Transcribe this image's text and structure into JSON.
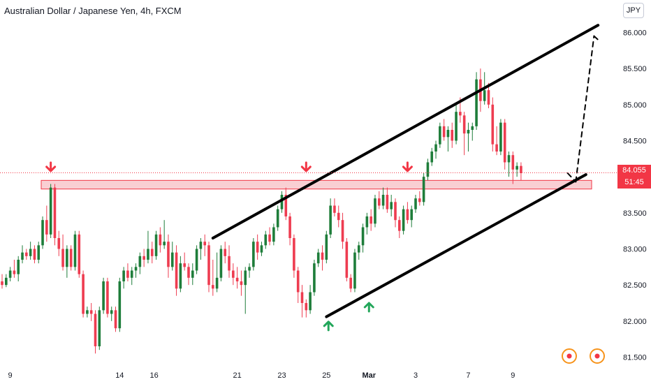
{
  "header": {
    "title": "Australian Dollar / Japanese Yen, 4h, FXCM",
    "currency_button": "JPY"
  },
  "price_badge": {
    "price": "84.055",
    "countdown": "51:45",
    "color": "#f23645"
  },
  "colors": {
    "up": "#1e7d3a",
    "down": "#ee3c50",
    "line": "#000000",
    "zone_fill": "#f9cfd3",
    "zone_stroke": "#f23645",
    "arrow_down": "#f23645",
    "arrow_up": "#22a65a"
  },
  "chart_data": {
    "type": "candlestick",
    "title": "Australian Dollar / Japanese Yen, 4h, FXCM",
    "x_tick_labels": [
      "9",
      "14",
      "16",
      "21",
      "23",
      "25",
      "Mar",
      "3",
      "7",
      "9"
    ],
    "y_tick_labels": [
      "86.000",
      "85.500",
      "85.000",
      "84.500",
      "84.000",
      "83.500",
      "83.000",
      "82.500",
      "82.000",
      "81.500"
    ],
    "ylim": [
      81.35,
      86.45
    ],
    "xlim": [
      0,
      148
    ],
    "last_price": 84.055,
    "candles": [
      {
        "x": 0,
        "o": 82.55,
        "h": 82.65,
        "l": 82.45,
        "c": 82.5
      },
      {
        "x": 1,
        "o": 82.5,
        "h": 82.65,
        "l": 82.47,
        "c": 82.6
      },
      {
        "x": 2,
        "o": 82.6,
        "h": 82.75,
        "l": 82.55,
        "c": 82.7
      },
      {
        "x": 3,
        "o": 82.7,
        "h": 82.85,
        "l": 82.6,
        "c": 82.65
      },
      {
        "x": 4,
        "o": 82.65,
        "h": 82.9,
        "l": 82.55,
        "c": 82.85
      },
      {
        "x": 5,
        "o": 82.85,
        "h": 83.05,
        "l": 82.8,
        "c": 82.95
      },
      {
        "x": 6,
        "o": 82.95,
        "h": 83.0,
        "l": 82.85,
        "c": 82.9
      },
      {
        "x": 7,
        "o": 82.9,
        "h": 83.1,
        "l": 82.85,
        "c": 83.0
      },
      {
        "x": 8,
        "o": 83.0,
        "h": 83.05,
        "l": 82.8,
        "c": 82.85
      },
      {
        "x": 9,
        "o": 82.85,
        "h": 83.1,
        "l": 82.8,
        "c": 83.05
      },
      {
        "x": 10,
        "o": 83.05,
        "h": 83.45,
        "l": 83.0,
        "c": 83.4
      },
      {
        "x": 11,
        "o": 83.4,
        "h": 83.6,
        "l": 83.1,
        "c": 83.2
      },
      {
        "x": 12,
        "o": 83.2,
        "h": 83.9,
        "l": 83.15,
        "c": 83.85
      },
      {
        "x": 13,
        "o": 83.85,
        "h": 83.9,
        "l": 83.05,
        "c": 83.15
      },
      {
        "x": 14,
        "o": 83.15,
        "h": 83.25,
        "l": 82.9,
        "c": 83.0
      },
      {
        "x": 15,
        "o": 83.0,
        "h": 83.2,
        "l": 82.7,
        "c": 82.75
      },
      {
        "x": 16,
        "o": 82.75,
        "h": 83.05,
        "l": 82.6,
        "c": 83.0
      },
      {
        "x": 17,
        "o": 83.0,
        "h": 83.05,
        "l": 82.7,
        "c": 82.75
      },
      {
        "x": 18,
        "o": 82.75,
        "h": 83.25,
        "l": 82.7,
        "c": 83.2
      },
      {
        "x": 19,
        "o": 83.2,
        "h": 83.25,
        "l": 82.6,
        "c": 82.65
      },
      {
        "x": 20,
        "o": 82.65,
        "h": 82.7,
        "l": 82.05,
        "c": 82.1
      },
      {
        "x": 21,
        "o": 82.1,
        "h": 82.2,
        "l": 82.05,
        "c": 82.15
      },
      {
        "x": 22,
        "o": 82.15,
        "h": 82.25,
        "l": 82.0,
        "c": 82.1
      },
      {
        "x": 23,
        "o": 82.1,
        "h": 82.15,
        "l": 81.55,
        "c": 81.65
      },
      {
        "x": 24,
        "o": 81.65,
        "h": 82.2,
        "l": 81.6,
        "c": 82.15
      },
      {
        "x": 25,
        "o": 82.15,
        "h": 82.6,
        "l": 82.1,
        "c": 82.55
      },
      {
        "x": 26,
        "o": 82.55,
        "h": 82.6,
        "l": 82.05,
        "c": 82.1
      },
      {
        "x": 27,
        "o": 82.1,
        "h": 82.2,
        "l": 82.0,
        "c": 82.15
      },
      {
        "x": 28,
        "o": 82.15,
        "h": 82.2,
        "l": 81.85,
        "c": 81.9
      },
      {
        "x": 29,
        "o": 81.9,
        "h": 82.6,
        "l": 81.85,
        "c": 82.55
      },
      {
        "x": 30,
        "o": 82.55,
        "h": 82.75,
        "l": 82.45,
        "c": 82.7
      },
      {
        "x": 31,
        "o": 82.7,
        "h": 82.8,
        "l": 82.55,
        "c": 82.6
      },
      {
        "x": 32,
        "o": 82.6,
        "h": 82.75,
        "l": 82.5,
        "c": 82.7
      },
      {
        "x": 33,
        "o": 82.7,
        "h": 82.8,
        "l": 82.6,
        "c": 82.75
      },
      {
        "x": 34,
        "o": 82.75,
        "h": 82.95,
        "l": 82.65,
        "c": 82.9
      },
      {
        "x": 35,
        "o": 82.9,
        "h": 83.0,
        "l": 82.75,
        "c": 82.85
      },
      {
        "x": 36,
        "o": 82.85,
        "h": 83.25,
        "l": 82.8,
        "c": 83.0
      },
      {
        "x": 37,
        "o": 83.0,
        "h": 83.1,
        "l": 82.8,
        "c": 82.9
      },
      {
        "x": 38,
        "o": 82.9,
        "h": 83.25,
        "l": 82.85,
        "c": 83.2
      },
      {
        "x": 39,
        "o": 83.2,
        "h": 83.3,
        "l": 82.95,
        "c": 83.05
      },
      {
        "x": 40,
        "o": 83.05,
        "h": 83.4,
        "l": 83.0,
        "c": 83.1
      },
      {
        "x": 41,
        "o": 83.1,
        "h": 83.2,
        "l": 82.6,
        "c": 82.75
      },
      {
        "x": 42,
        "o": 82.75,
        "h": 83.1,
        "l": 82.7,
        "c": 82.95
      },
      {
        "x": 43,
        "o": 82.95,
        "h": 83.05,
        "l": 82.35,
        "c": 82.45
      },
      {
        "x": 44,
        "o": 82.45,
        "h": 82.9,
        "l": 82.4,
        "c": 82.8
      },
      {
        "x": 45,
        "o": 82.8,
        "h": 82.95,
        "l": 82.7,
        "c": 82.75
      },
      {
        "x": 46,
        "o": 82.75,
        "h": 82.8,
        "l": 82.5,
        "c": 82.6
      },
      {
        "x": 47,
        "o": 82.6,
        "h": 82.8,
        "l": 82.5,
        "c": 82.7
      },
      {
        "x": 48,
        "o": 82.7,
        "h": 83.05,
        "l": 82.65,
        "c": 83.0
      },
      {
        "x": 49,
        "o": 83.0,
        "h": 83.15,
        "l": 82.85,
        "c": 83.1
      },
      {
        "x": 50,
        "o": 83.1,
        "h": 83.2,
        "l": 82.9,
        "c": 83.05
      },
      {
        "x": 51,
        "o": 83.05,
        "h": 83.1,
        "l": 82.4,
        "c": 82.5
      },
      {
        "x": 52,
        "o": 82.5,
        "h": 82.85,
        "l": 82.35,
        "c": 82.45
      },
      {
        "x": 53,
        "o": 82.45,
        "h": 82.95,
        "l": 82.4,
        "c": 82.6
      },
      {
        "x": 54,
        "o": 82.6,
        "h": 83.05,
        "l": 82.55,
        "c": 83.0
      },
      {
        "x": 55,
        "o": 83.0,
        "h": 83.1,
        "l": 82.8,
        "c": 82.9
      },
      {
        "x": 56,
        "o": 82.9,
        "h": 83.05,
        "l": 82.6,
        "c": 82.7
      },
      {
        "x": 57,
        "o": 82.7,
        "h": 82.8,
        "l": 82.5,
        "c": 82.6
      },
      {
        "x": 58,
        "o": 82.6,
        "h": 82.75,
        "l": 82.45,
        "c": 82.55
      },
      {
        "x": 59,
        "o": 82.55,
        "h": 82.7,
        "l": 82.35,
        "c": 82.5
      },
      {
        "x": 60,
        "o": 82.5,
        "h": 82.75,
        "l": 82.1,
        "c": 82.7
      },
      {
        "x": 61,
        "o": 82.7,
        "h": 82.8,
        "l": 82.6,
        "c": 82.75
      },
      {
        "x": 62,
        "o": 82.75,
        "h": 83.15,
        "l": 82.7,
        "c": 83.1
      },
      {
        "x": 63,
        "o": 83.1,
        "h": 83.2,
        "l": 82.85,
        "c": 82.95
      },
      {
        "x": 64,
        "o": 82.95,
        "h": 83.1,
        "l": 82.9,
        "c": 83.05
      },
      {
        "x": 65,
        "o": 83.05,
        "h": 83.25,
        "l": 83.0,
        "c": 83.2
      },
      {
        "x": 66,
        "o": 83.2,
        "h": 83.3,
        "l": 83.05,
        "c": 83.1
      },
      {
        "x": 67,
        "o": 83.1,
        "h": 83.35,
        "l": 83.05,
        "c": 83.3
      },
      {
        "x": 68,
        "o": 83.3,
        "h": 83.6,
        "l": 83.25,
        "c": 83.55
      },
      {
        "x": 69,
        "o": 83.55,
        "h": 83.8,
        "l": 83.5,
        "c": 83.75
      },
      {
        "x": 70,
        "o": 83.75,
        "h": 83.85,
        "l": 83.4,
        "c": 83.45
      },
      {
        "x": 71,
        "o": 83.45,
        "h": 83.5,
        "l": 83.05,
        "c": 83.15
      },
      {
        "x": 72,
        "o": 83.15,
        "h": 83.2,
        "l": 82.6,
        "c": 82.7
      },
      {
        "x": 73,
        "o": 82.7,
        "h": 82.75,
        "l": 82.25,
        "c": 82.4
      },
      {
        "x": 74,
        "o": 82.4,
        "h": 82.5,
        "l": 82.05,
        "c": 82.25
      },
      {
        "x": 75,
        "o": 82.25,
        "h": 82.3,
        "l": 82.05,
        "c": 82.15
      },
      {
        "x": 76,
        "o": 82.15,
        "h": 82.5,
        "l": 82.1,
        "c": 82.4
      },
      {
        "x": 77,
        "o": 82.4,
        "h": 82.85,
        "l": 82.35,
        "c": 82.8
      },
      {
        "x": 78,
        "o": 82.8,
        "h": 83.0,
        "l": 82.75,
        "c": 82.95
      },
      {
        "x": 79,
        "o": 82.95,
        "h": 83.05,
        "l": 82.7,
        "c": 82.85
      },
      {
        "x": 80,
        "o": 82.85,
        "h": 83.25,
        "l": 82.8,
        "c": 83.2
      },
      {
        "x": 81,
        "o": 83.2,
        "h": 83.7,
        "l": 83.15,
        "c": 83.6
      },
      {
        "x": 82,
        "o": 83.6,
        "h": 83.7,
        "l": 83.45,
        "c": 83.5
      },
      {
        "x": 83,
        "o": 83.5,
        "h": 83.6,
        "l": 83.3,
        "c": 83.4
      },
      {
        "x": 84,
        "o": 83.4,
        "h": 83.5,
        "l": 83.0,
        "c": 83.1
      },
      {
        "x": 85,
        "o": 83.1,
        "h": 83.15,
        "l": 82.55,
        "c": 82.6
      },
      {
        "x": 86,
        "o": 82.6,
        "h": 82.65,
        "l": 82.4,
        "c": 82.45
      },
      {
        "x": 87,
        "o": 82.45,
        "h": 83.0,
        "l": 82.4,
        "c": 82.95
      },
      {
        "x": 88,
        "o": 82.95,
        "h": 83.1,
        "l": 82.85,
        "c": 83.05
      },
      {
        "x": 89,
        "o": 83.05,
        "h": 83.35,
        "l": 82.95,
        "c": 83.3
      },
      {
        "x": 90,
        "o": 83.3,
        "h": 83.5,
        "l": 83.2,
        "c": 83.45
      },
      {
        "x": 91,
        "o": 83.45,
        "h": 83.55,
        "l": 83.25,
        "c": 83.35
      },
      {
        "x": 92,
        "o": 83.35,
        "h": 83.75,
        "l": 83.3,
        "c": 83.7
      },
      {
        "x": 93,
        "o": 83.7,
        "h": 83.8,
        "l": 83.55,
        "c": 83.6
      },
      {
        "x": 94,
        "o": 83.6,
        "h": 83.85,
        "l": 83.55,
        "c": 83.75
      },
      {
        "x": 95,
        "o": 83.75,
        "h": 83.85,
        "l": 83.5,
        "c": 83.55
      },
      {
        "x": 96,
        "o": 83.55,
        "h": 83.75,
        "l": 83.45,
        "c": 83.65
      },
      {
        "x": 97,
        "o": 83.65,
        "h": 83.7,
        "l": 83.3,
        "c": 83.4
      },
      {
        "x": 98,
        "o": 83.4,
        "h": 83.45,
        "l": 83.15,
        "c": 83.25
      },
      {
        "x": 99,
        "o": 83.25,
        "h": 83.6,
        "l": 83.2,
        "c": 83.55
      },
      {
        "x": 100,
        "o": 83.55,
        "h": 83.65,
        "l": 83.35,
        "c": 83.4
      },
      {
        "x": 101,
        "o": 83.4,
        "h": 83.6,
        "l": 83.3,
        "c": 83.55
      },
      {
        "x": 102,
        "o": 83.55,
        "h": 83.75,
        "l": 83.5,
        "c": 83.7
      },
      {
        "x": 103,
        "o": 83.7,
        "h": 83.8,
        "l": 83.6,
        "c": 83.65
      },
      {
        "x": 104,
        "o": 83.65,
        "h": 84.05,
        "l": 83.6,
        "c": 84.0
      },
      {
        "x": 105,
        "o": 84.0,
        "h": 84.25,
        "l": 83.95,
        "c": 84.2
      },
      {
        "x": 106,
        "o": 84.2,
        "h": 84.4,
        "l": 84.15,
        "c": 84.35
      },
      {
        "x": 107,
        "o": 84.35,
        "h": 84.5,
        "l": 84.25,
        "c": 84.45
      },
      {
        "x": 108,
        "o": 84.45,
        "h": 84.75,
        "l": 84.4,
        "c": 84.7
      },
      {
        "x": 109,
        "o": 84.7,
        "h": 84.8,
        "l": 84.5,
        "c": 84.55
      },
      {
        "x": 110,
        "o": 84.55,
        "h": 84.7,
        "l": 84.35,
        "c": 84.65
      },
      {
        "x": 111,
        "o": 84.65,
        "h": 84.75,
        "l": 84.4,
        "c": 84.5
      },
      {
        "x": 112,
        "o": 84.5,
        "h": 85.0,
        "l": 84.45,
        "c": 84.9
      },
      {
        "x": 113,
        "o": 84.9,
        "h": 85.1,
        "l": 84.75,
        "c": 84.85
      },
      {
        "x": 114,
        "o": 84.85,
        "h": 84.9,
        "l": 84.3,
        "c": 84.6
      },
      {
        "x": 115,
        "o": 84.6,
        "h": 84.75,
        "l": 84.35,
        "c": 84.65
      },
      {
        "x": 116,
        "o": 84.65,
        "h": 84.75,
        "l": 84.5,
        "c": 84.7
      },
      {
        "x": 117,
        "o": 84.7,
        "h": 85.45,
        "l": 84.65,
        "c": 85.35
      },
      {
        "x": 118,
        "o": 85.35,
        "h": 85.5,
        "l": 84.9,
        "c": 85.05
      },
      {
        "x": 119,
        "o": 85.05,
        "h": 85.45,
        "l": 85.0,
        "c": 85.2
      },
      {
        "x": 120,
        "o": 85.2,
        "h": 85.3,
        "l": 84.95,
        "c": 85.0
      },
      {
        "x": 121,
        "o": 85.0,
        "h": 85.1,
        "l": 84.35,
        "c": 84.45
      },
      {
        "x": 122,
        "o": 84.45,
        "h": 84.7,
        "l": 84.3,
        "c": 84.35
      },
      {
        "x": 123,
        "o": 84.35,
        "h": 84.8,
        "l": 84.3,
        "c": 84.75
      },
      {
        "x": 124,
        "o": 84.75,
        "h": 84.8,
        "l": 84.1,
        "c": 84.2
      },
      {
        "x": 125,
        "o": 84.2,
        "h": 84.35,
        "l": 84.0,
        "c": 84.3
      },
      {
        "x": 126,
        "o": 84.3,
        "h": 84.35,
        "l": 83.9,
        "c": 84.1
      },
      {
        "x": 127,
        "o": 84.1,
        "h": 84.2,
        "l": 84.0,
        "c": 84.15
      },
      {
        "x": 128,
        "o": 84.15,
        "h": 84.2,
        "l": 83.95,
        "c": 84.05
      }
    ],
    "support_resistance_zone": {
      "low": 83.83,
      "high": 83.95
    },
    "trendlines": [
      {
        "name": "upper-channel",
        "from": {
          "x": 52,
          "y": 83.15
        },
        "to": {
          "x": 147,
          "y": 86.1
        },
        "style": "solid"
      },
      {
        "name": "lower-channel",
        "from": {
          "x": 80,
          "y": 82.06
        },
        "to": {
          "x": 144,
          "y": 84.03
        },
        "style": "solid"
      },
      {
        "name": "projection-a",
        "from": {
          "x": 139.5,
          "y": 84.05
        },
        "to": {
          "x": 141.5,
          "y": 83.93
        },
        "style": "dashed"
      },
      {
        "name": "projection-b",
        "from": {
          "x": 141.5,
          "y": 83.93
        },
        "to": {
          "x": 146,
          "y": 85.95
        },
        "style": "dashed"
      },
      {
        "name": "projection-c",
        "from": {
          "x": 146,
          "y": 85.95
        },
        "to": {
          "x": 147.4,
          "y": 85.88
        },
        "style": "dashed"
      }
    ],
    "markers": [
      {
        "type": "arrow-down",
        "x": 12,
        "y": 84.08
      },
      {
        "type": "arrow-down",
        "x": 75,
        "y": 84.08
      },
      {
        "type": "arrow-down",
        "x": 100,
        "y": 84.08
      },
      {
        "type": "arrow-up",
        "x": 80.5,
        "y": 81.99
      },
      {
        "type": "arrow-up",
        "x": 90.5,
        "y": 82.25
      }
    ]
  }
}
